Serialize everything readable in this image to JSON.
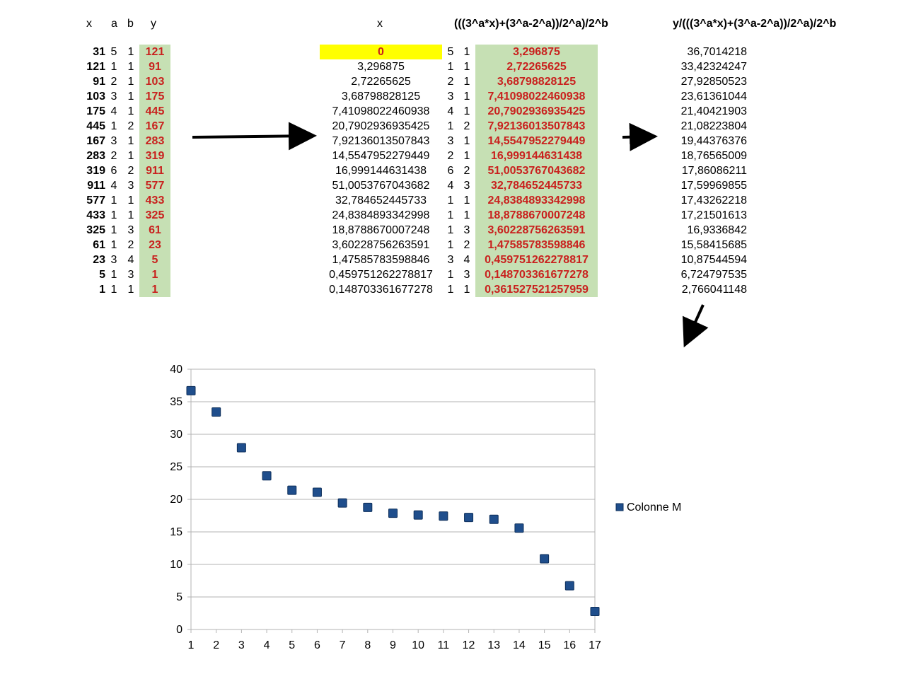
{
  "headers": {
    "x": "x",
    "a": "a",
    "b": "b",
    "y": "y",
    "x2": "x",
    "formula": "(((3^a*x)+(3^a-2^a))/2^a)/2^b",
    "ratio": "y/(((3^a*x)+(3^a-2^a))/2^a)/2^b"
  },
  "left_table": [
    {
      "x": "31",
      "a": "5",
      "b": "1",
      "y": "121"
    },
    {
      "x": "121",
      "a": "1",
      "b": "1",
      "y": "91"
    },
    {
      "x": "91",
      "a": "2",
      "b": "1",
      "y": "103"
    },
    {
      "x": "103",
      "a": "3",
      "b": "1",
      "y": "175"
    },
    {
      "x": "175",
      "a": "4",
      "b": "1",
      "y": "445"
    },
    {
      "x": "445",
      "a": "1",
      "b": "2",
      "y": "167"
    },
    {
      "x": "167",
      "a": "3",
      "b": "1",
      "y": "283"
    },
    {
      "x": "283",
      "a": "2",
      "b": "1",
      "y": "319"
    },
    {
      "x": "319",
      "a": "6",
      "b": "2",
      "y": "911"
    },
    {
      "x": "911",
      "a": "4",
      "b": "3",
      "y": "577"
    },
    {
      "x": "577",
      "a": "1",
      "b": "1",
      "y": "433"
    },
    {
      "x": "433",
      "a": "1",
      "b": "1",
      "y": "325"
    },
    {
      "x": "325",
      "a": "1",
      "b": "3",
      "y": "61"
    },
    {
      "x": "61",
      "a": "1",
      "b": "2",
      "y": "23"
    },
    {
      "x": "23",
      "a": "3",
      "b": "4",
      "y": "5"
    },
    {
      "x": "5",
      "a": "1",
      "b": "3",
      "y": "1"
    },
    {
      "x": "1",
      "a": "1",
      "b": "1",
      "y": "1"
    }
  ],
  "mid_table": [
    {
      "x": "0",
      "a": "5",
      "b": "1",
      "f": "3,296875"
    },
    {
      "x": "3,296875",
      "a": "1",
      "b": "1",
      "f": "2,72265625"
    },
    {
      "x": "2,72265625",
      "a": "2",
      "b": "1",
      "f": "3,68798828125"
    },
    {
      "x": "3,68798828125",
      "a": "3",
      "b": "1",
      "f": "7,41098022460938"
    },
    {
      "x": "7,41098022460938",
      "a": "4",
      "b": "1",
      "f": "20,7902936935425"
    },
    {
      "x": "20,7902936935425",
      "a": "1",
      "b": "2",
      "f": "7,92136013507843"
    },
    {
      "x": "7,92136013507843",
      "a": "3",
      "b": "1",
      "f": "14,5547952279449"
    },
    {
      "x": "14,5547952279449",
      "a": "2",
      "b": "1",
      "f": "16,999144631438"
    },
    {
      "x": "16,999144631438",
      "a": "6",
      "b": "2",
      "f": "51,0053767043682"
    },
    {
      "x": "51,0053767043682",
      "a": "4",
      "b": "3",
      "f": "32,784652445733"
    },
    {
      "x": "32,784652445733",
      "a": "1",
      "b": "1",
      "f": "24,8384893342998"
    },
    {
      "x": "24,8384893342998",
      "a": "1",
      "b": "1",
      "f": "18,8788670007248"
    },
    {
      "x": "18,8788670007248",
      "a": "1",
      "b": "3",
      "f": "3,60228756263591"
    },
    {
      "x": "3,60228756263591",
      "a": "1",
      "b": "2",
      "f": "1,47585783598846"
    },
    {
      "x": "1,47585783598846",
      "a": "3",
      "b": "4",
      "f": "0,459751262278817"
    },
    {
      "x": "0,459751262278817",
      "a": "1",
      "b": "3",
      "f": "0,148703361677278"
    },
    {
      "x": "0,148703361677278",
      "a": "1",
      "b": "1",
      "f": "0,361527521257959"
    }
  ],
  "ratio_column": [
    "36,7014218",
    "33,42324247",
    "27,92850523",
    "23,61361044",
    "21,40421903",
    "21,08223804",
    "19,44376376",
    "18,76565009",
    "17,86086211",
    "17,59969855",
    "17,43262218",
    "17,21501613",
    "16,9336842",
    "15,58415685",
    "10,87544594",
    "6,724797535",
    "2,766041148"
  ],
  "colors": {
    "green_fill": "#c6e0b4",
    "yellow_fill": "#ffff00",
    "red_text": "#c9211e",
    "marker": "#1f4e8c",
    "marker_edge": "#0e2f5a",
    "grid": "#b3b3b3"
  },
  "chart_data": {
    "type": "scatter",
    "title": "",
    "xlabel": "",
    "ylabel": "",
    "x": [
      1,
      2,
      3,
      4,
      5,
      6,
      7,
      8,
      9,
      10,
      11,
      12,
      13,
      14,
      15,
      16,
      17
    ],
    "series": [
      {
        "name": "Colonne M",
        "values": [
          36.7014218,
          33.42324247,
          27.92850523,
          23.61361044,
          21.40421903,
          21.08223804,
          19.44376376,
          18.76565009,
          17.86086211,
          17.59969855,
          17.43262218,
          17.21501613,
          16.9336842,
          15.58415685,
          10.87544594,
          6.724797535,
          2.766041148
        ]
      }
    ],
    "xlim": [
      1,
      17
    ],
    "ylim": [
      0,
      40
    ],
    "x_ticks": [
      "1",
      "2",
      "3",
      "4",
      "5",
      "6",
      "7",
      "8",
      "9",
      "10",
      "11",
      "12",
      "13",
      "14",
      "15",
      "16",
      "17"
    ],
    "y_ticks": [
      "0",
      "5",
      "10",
      "15",
      "20",
      "25",
      "30",
      "35",
      "40"
    ],
    "grid": true,
    "legend_position": "right"
  }
}
